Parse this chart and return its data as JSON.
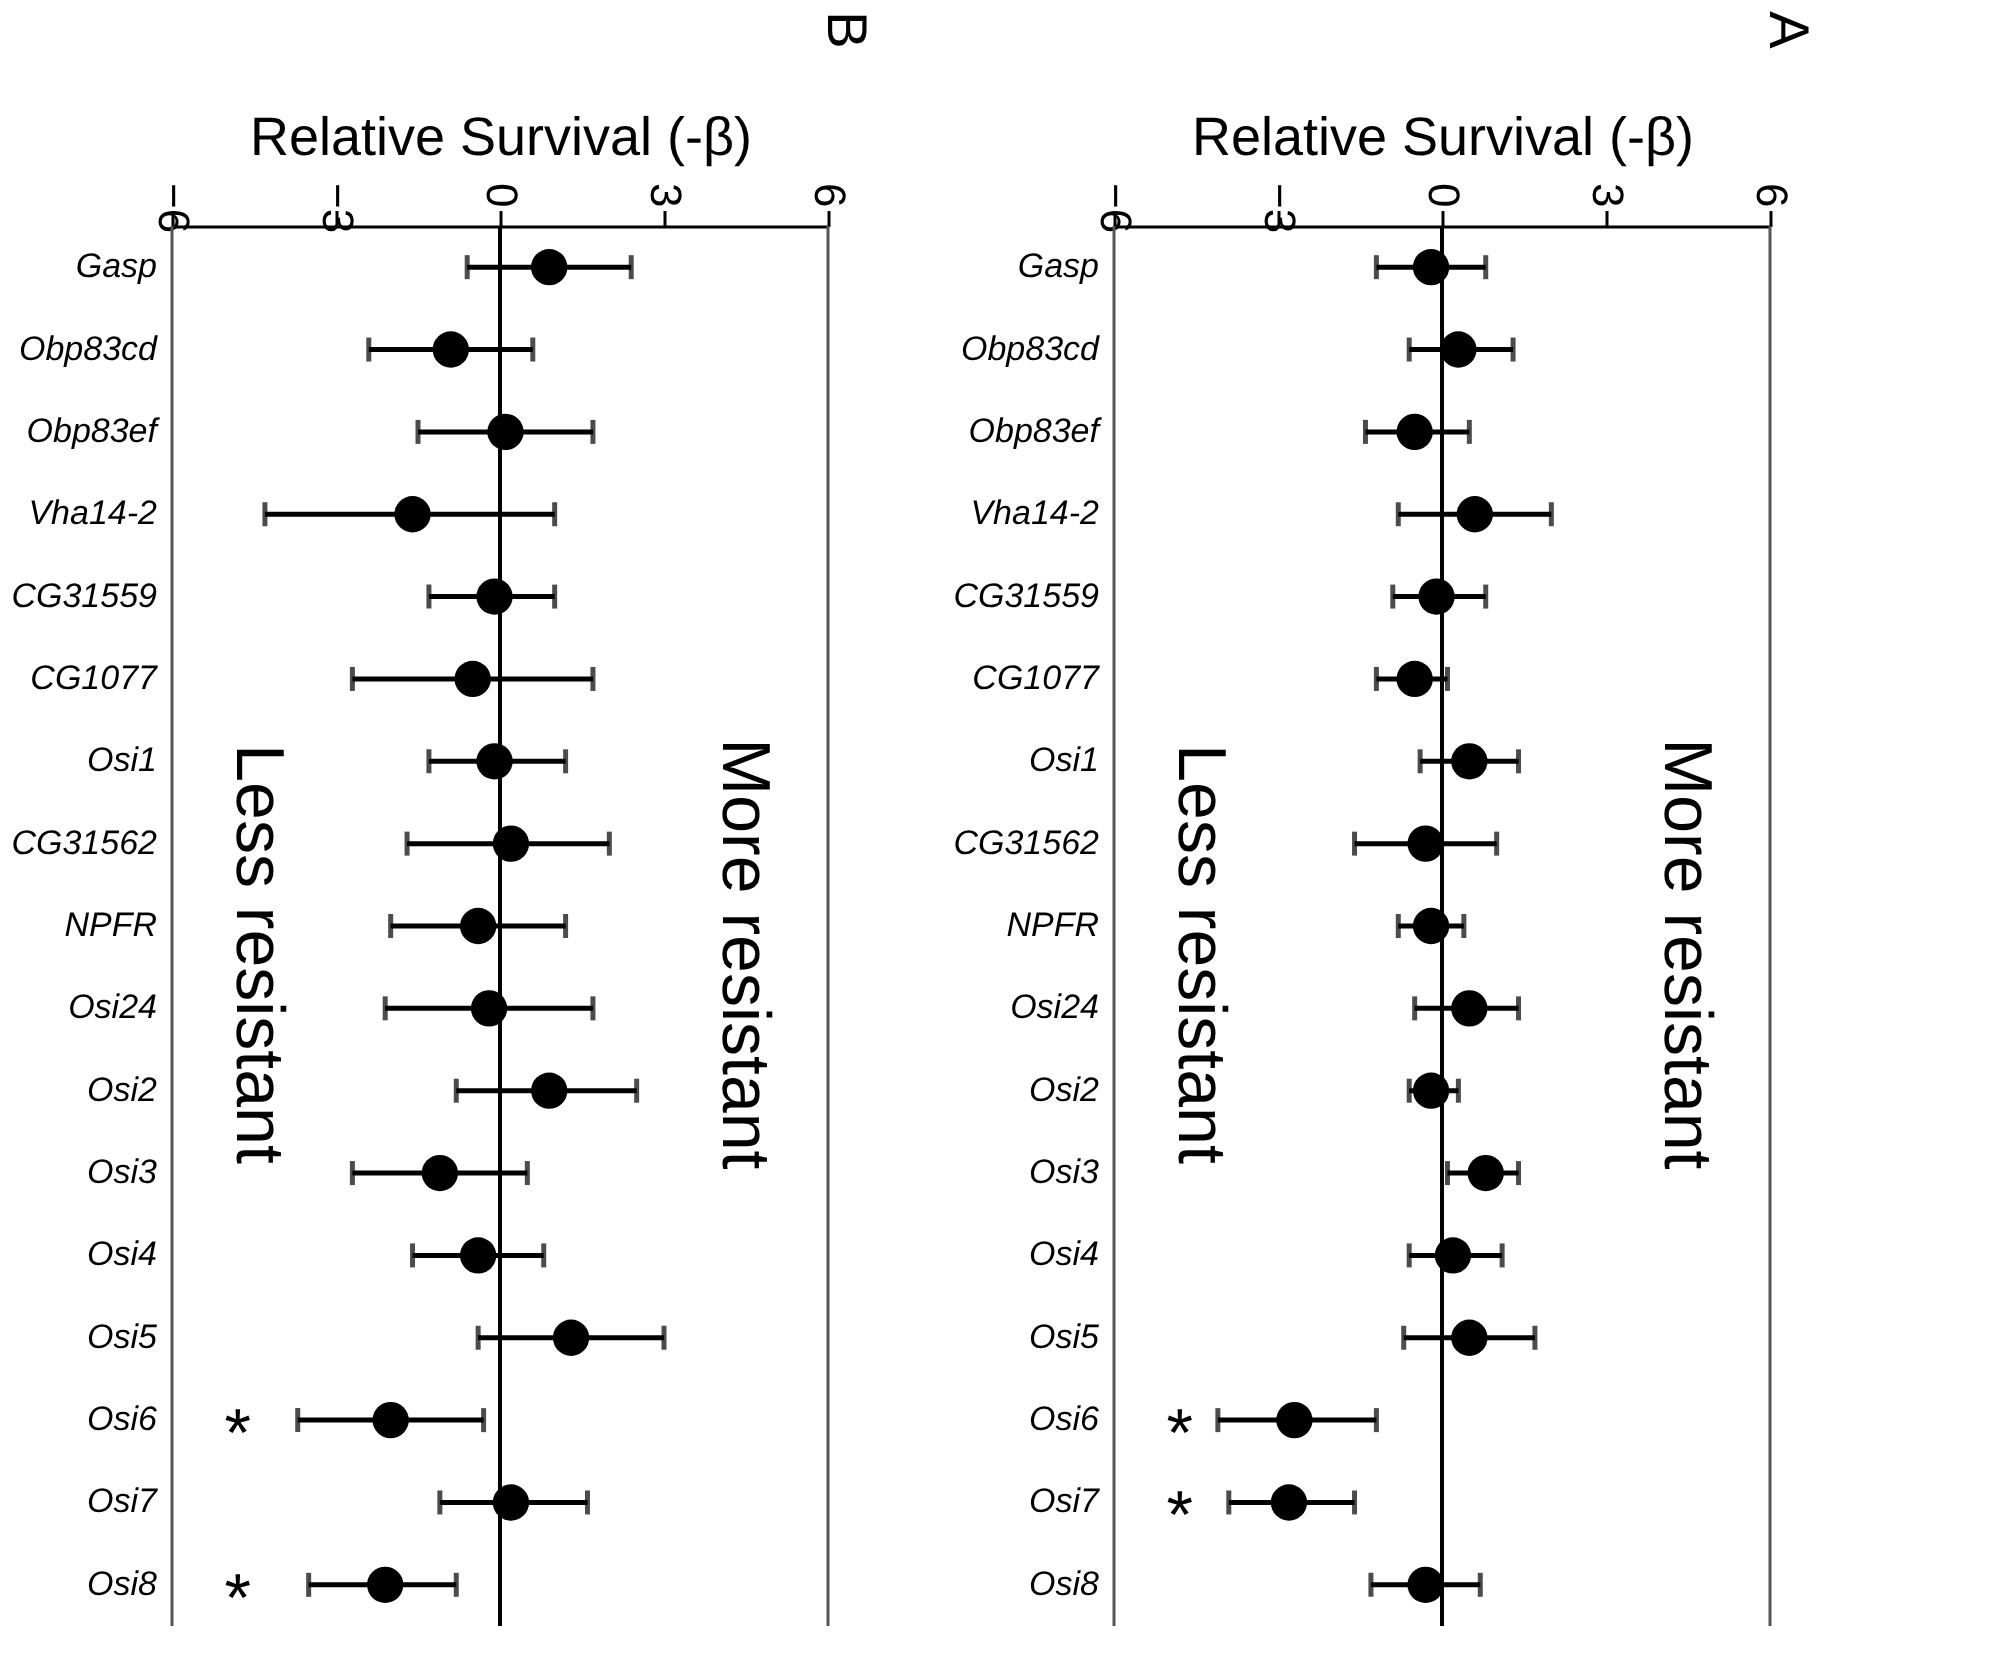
{
  "chart_data": [
    {
      "type": "scatter",
      "orientation": "horizontal",
      "title": "B",
      "xlabel": "Relative Survival (-β)",
      "marker": "circle",
      "color": "#000000",
      "categories": [
        "Gasp",
        "Obp83cd",
        "Obp83ef",
        "Vha14-2",
        "CG31559",
        "CG1077",
        "Osi1",
        "CG31562",
        "NPFR",
        "Osi24",
        "Osi2",
        "Osi3",
        "Osi4",
        "Osi5",
        "Osi6",
        "Osi7",
        "Osi8"
      ],
      "values": [
        0.9,
        -0.9,
        0.1,
        -1.6,
        -0.1,
        -0.5,
        -0.1,
        0.2,
        -0.4,
        -0.2,
        0.9,
        -1.1,
        -0.4,
        1.3,
        -2.0,
        0.2,
        -2.1
      ],
      "errors": [
        [
          -0.6,
          2.4
        ],
        [
          -2.4,
          0.6
        ],
        [
          -1.5,
          1.7
        ],
        [
          -4.3,
          1.0
        ],
        [
          -1.3,
          1.0
        ],
        [
          -2.7,
          1.7
        ],
        [
          -1.3,
          1.2
        ],
        [
          -1.7,
          2.0
        ],
        [
          -2.0,
          1.2
        ],
        [
          -2.1,
          1.7
        ],
        [
          -0.8,
          2.5
        ],
        [
          -2.7,
          0.5
        ],
        [
          -1.6,
          0.8
        ],
        [
          -0.4,
          3.0
        ],
        [
          -3.7,
          -0.3
        ],
        [
          -1.1,
          1.6
        ],
        [
          -3.5,
          -0.8
        ]
      ],
      "xlim": [
        -6,
        6
      ],
      "xticks": [
        -6,
        -3,
        0,
        3,
        6
      ],
      "ref_lines": [
        {
          "axis": "x",
          "value": 0
        }
      ],
      "annotations": [
        "Less resistant",
        "More resistant",
        "*",
        "*"
      ]
    },
    {
      "type": "scatter",
      "orientation": "horizontal",
      "title": "A",
      "xlabel": "Relative Survival (-β)",
      "marker": "circle",
      "color": "#000000",
      "categories": [
        "Gasp",
        "Obp83cd",
        "Obp83ef",
        "Vha14-2",
        "CG31559",
        "CG1077",
        "Osi1",
        "CG31562",
        "NPFR",
        "Osi24",
        "Osi2",
        "Osi3",
        "Osi4",
        "Osi5",
        "Osi6",
        "Osi7",
        "Osi8"
      ],
      "values": [
        -0.2,
        0.3,
        -0.5,
        0.6,
        -0.1,
        -0.5,
        0.5,
        -0.3,
        -0.2,
        0.5,
        -0.2,
        0.8,
        0.2,
        0.5,
        -2.7,
        -2.8,
        -0.3
      ],
      "errors": [
        [
          -1.2,
          0.8
        ],
        [
          -0.6,
          1.3
        ],
        [
          -1.4,
          0.5
        ],
        [
          -0.8,
          2.0
        ],
        [
          -0.9,
          0.8
        ],
        [
          -1.2,
          0.1
        ],
        [
          -0.4,
          1.4
        ],
        [
          -1.6,
          1.0
        ],
        [
          -0.8,
          0.4
        ],
        [
          -0.5,
          1.4
        ],
        [
          -0.6,
          0.3
        ],
        [
          0.1,
          1.4
        ],
        [
          -0.6,
          1.1
        ],
        [
          -0.7,
          1.7
        ],
        [
          -4.1,
          -1.2
        ],
        [
          -3.9,
          -1.6
        ],
        [
          -1.3,
          0.7
        ]
      ],
      "xlim": [
        -6,
        6
      ],
      "xticks": [
        -6,
        -3,
        0,
        3,
        6
      ],
      "ref_lines": [
        {
          "axis": "x",
          "value": 0
        }
      ],
      "annotations": [
        "Less resistant",
        "More resistant",
        "*",
        "*"
      ]
    }
  ]
}
